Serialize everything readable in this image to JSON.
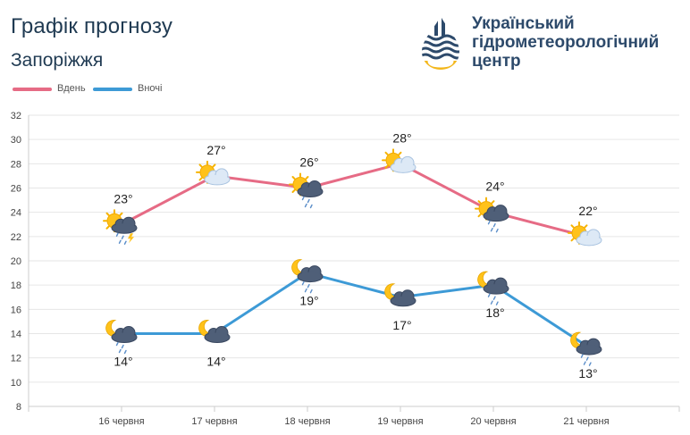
{
  "header": {
    "title": "Графік прогнозу",
    "subtitle": "Запоріжжя",
    "org_line1": "Український",
    "org_line2": "гідрометеорологічний",
    "org_line3": "центр"
  },
  "colors": {
    "day": "#e66b85",
    "night": "#3d9ad6",
    "grid": "#e6e6e6",
    "text": "#222222",
    "title": "#1f3a52"
  },
  "chart_data": {
    "type": "line",
    "categories": [
      "16 червня",
      "17 червня",
      "18 червня",
      "19 червня",
      "20 червня",
      "21 червня"
    ],
    "series": [
      {
        "name": "Вдень",
        "values": [
          23,
          27,
          26,
          28,
          24,
          22
        ],
        "labels": [
          "23°",
          "27°",
          "26°",
          "28°",
          "24°",
          "22°"
        ],
        "icons": [
          "sun-cloud-rain-thunder-icon",
          "sun-cloud-icon",
          "sun-cloud-rain-icon",
          "sun-cloud-icon",
          "sun-cloud-rain-icon",
          "sun-cloud-icon"
        ]
      },
      {
        "name": "Вночі",
        "values": [
          14,
          14,
          19,
          17,
          18,
          13
        ],
        "labels": [
          "14°",
          "14°",
          "19°",
          "17°",
          "18°",
          "13°"
        ],
        "icons": [
          "moon-cloud-rain-icon",
          "moon-cloud-icon",
          "moon-cloud-rain-icon",
          "moon-cloud-icon",
          "moon-cloud-rain-icon",
          "moon-cloud-rain-icon"
        ]
      }
    ],
    "ylim": [
      8,
      32
    ],
    "yticks": [
      "8",
      "10",
      "12",
      "14",
      "16",
      "18",
      "20",
      "22",
      "24",
      "26",
      "28",
      "30",
      "32"
    ],
    "grid": true,
    "legend": "top-left"
  }
}
